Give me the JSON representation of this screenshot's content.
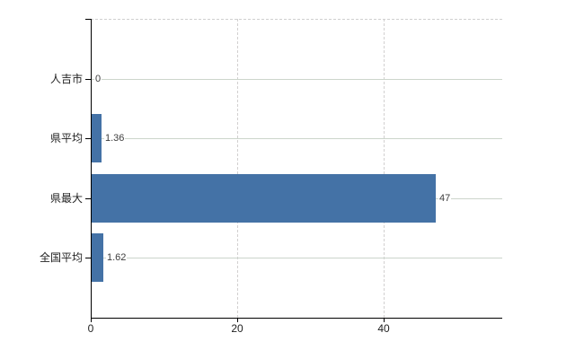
{
  "chart_data": {
    "type": "bar",
    "orientation": "horizontal",
    "title": "",
    "categories": [
      "人吉市",
      "県平均",
      "県最大",
      "全国平均"
    ],
    "values": [
      0,
      1.36,
      47,
      1.62
    ],
    "data_labels": [
      "0",
      "1.36",
      "47",
      "1.62"
    ],
    "x_ticks": [
      0,
      20,
      40
    ],
    "x_tick_labels": [
      "0",
      "20",
      "40"
    ],
    "xlim": [
      0,
      56.2
    ],
    "grid": true,
    "legend": "none",
    "bar_color": "#4472a6",
    "colors": {
      "background": "#ffffff",
      "axis": "#000000",
      "hgrid": "#ccd5cb",
      "vgrid": "#d2d0d0",
      "top_border": "#cfcfcf",
      "data_label": "#3d3d3d",
      "tick_label": "#222222"
    }
  }
}
